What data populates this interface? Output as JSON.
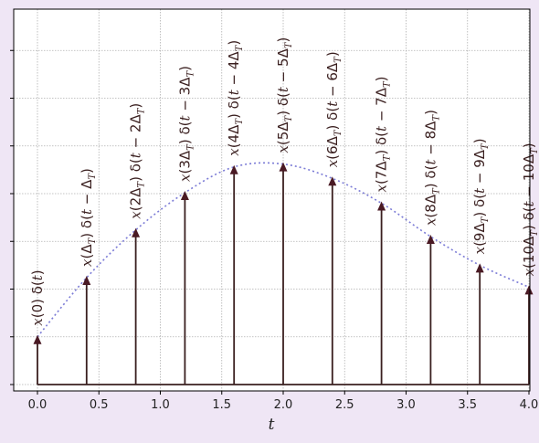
{
  "chart_data": {
    "type": "stem",
    "xlabel": "t",
    "ylabel": "",
    "xlim": [
      -0.2,
      4.2
    ],
    "ylim": [
      -0.05,
      3.9
    ],
    "xticks": [
      "0.0",
      "0.5",
      "1.0",
      "1.5",
      "2.0",
      "2.5",
      "3.0",
      "3.5",
      "4.0"
    ],
    "xtick_values": [
      0,
      0.5,
      1.0,
      1.5,
      2.0,
      2.5,
      3.0,
      3.5,
      4.0
    ],
    "ytick_values": [
      0,
      0.5,
      1.0,
      1.5,
      2.0,
      2.5,
      3.0,
      3.5
    ],
    "ytick_labels_visible": false,
    "grid": true,
    "stems": {
      "x": [
        0.0,
        0.4,
        0.8,
        1.2,
        1.6,
        2.0,
        2.4,
        2.8,
        3.2,
        3.6,
        4.0
      ],
      "y": [
        0.5,
        1.12,
        1.62,
        2.01,
        2.28,
        2.31,
        2.16,
        1.9,
        1.55,
        1.25,
        1.02
      ]
    },
    "envelope_style": "dotted",
    "labels": [
      "x(0) δ(t)",
      "x(Δ_T) δ(t − Δ_T)",
      "x(2Δ_T) δ(t − 2Δ_T)",
      "x(3Δ_T) δ(t − 3Δ_T)",
      "x(4Δ_T) δ(t − 4Δ_T)",
      "x(5Δ_T) δ(t − 5Δ_T)",
      "x(6Δ_T) δ(t − 6Δ_T)",
      "x(7Δ_T) δ(t − 7Δ_T)",
      "x(8Δ_T) δ(t − 8Δ_T)",
      "x(9Δ_T) δ(t − 9Δ_T)",
      "x(10Δ_T) δ(t − 10Δ_T)"
    ],
    "colors": {
      "stem": "#3a1f1f",
      "arrow": "#4a1a24",
      "envelope": "#7b7bd6",
      "grid": "#b0b0b0",
      "background": "#ffffff",
      "figure_background": "#efe6f5"
    }
  }
}
